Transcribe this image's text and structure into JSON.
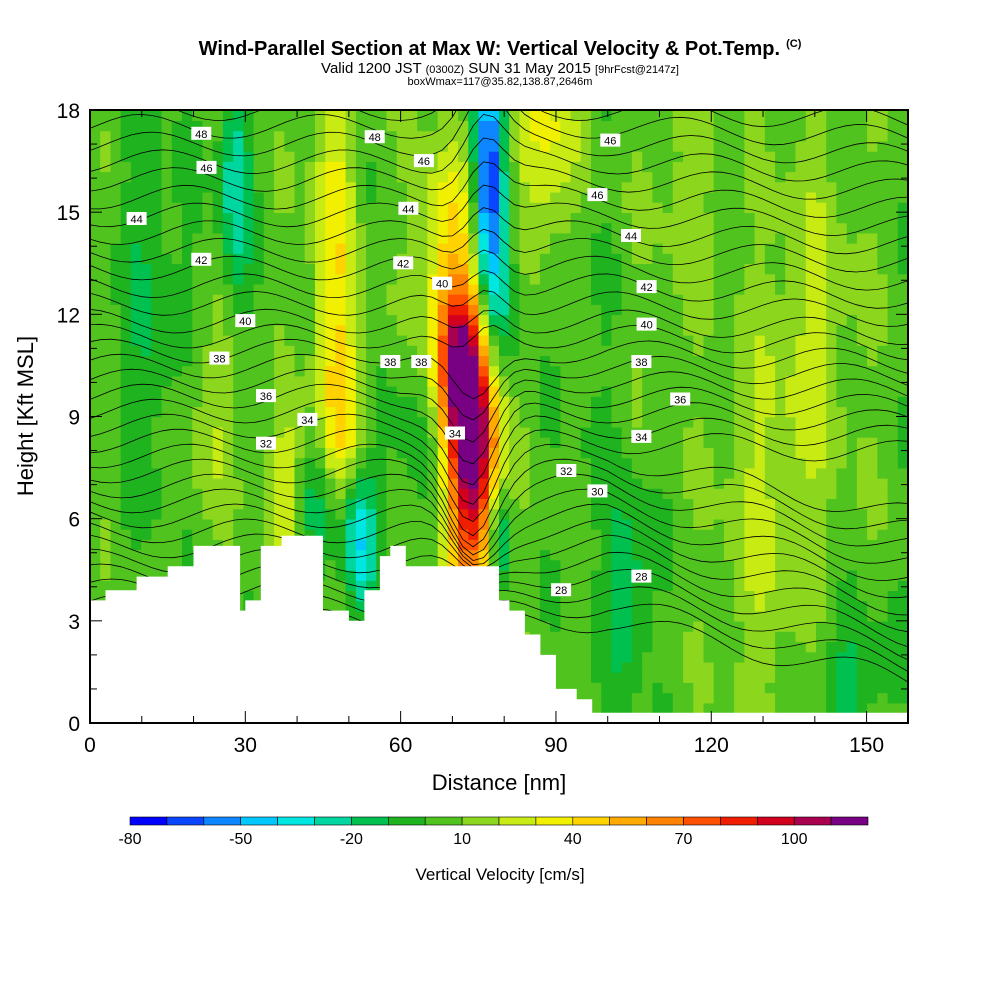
{
  "title": {
    "main": "Wind-Parallel Section at Max W: Vertical Velocity & Pot.Temp.",
    "copyright": "(C)",
    "valid": "Valid 1200 JST",
    "zulu": "(0300Z)",
    "date": "SUN 31 May 2015",
    "fcst": "[9hrFcst@2147z]",
    "box": "boxWmax=117@35.82,138.87,2646m"
  },
  "chart_data": {
    "type": "heatmap",
    "title": "Wind-Parallel Section at Max W: Vertical Velocity & Pot.Temp.",
    "xlabel": "Distance [nm]",
    "ylabel": "Height [Kft MSL]",
    "xlim": [
      0,
      158
    ],
    "ylim": [
      0,
      18
    ],
    "x_ticks": [
      0,
      30,
      60,
      90,
      120,
      150
    ],
    "y_ticks": [
      0,
      3,
      6,
      9,
      12,
      15,
      18
    ],
    "grid": false,
    "colorbar": {
      "label": "Vertical Velocity [cm/s]",
      "tick_values": [
        -80,
        -50,
        -20,
        10,
        40,
        70,
        100
      ],
      "levels": [
        -80,
        -70,
        -60,
        -50,
        -40,
        -30,
        -20,
        -10,
        0,
        10,
        20,
        30,
        40,
        50,
        60,
        70,
        80,
        90,
        100,
        110,
        120
      ],
      "colors": [
        "#0000ff",
        "#0a46ff",
        "#0d86ff",
        "#00c8ff",
        "#00e6e1",
        "#00d7a0",
        "#00c050",
        "#1fb41f",
        "#50c31e",
        "#8cd71e",
        "#c8eb14",
        "#f0f000",
        "#ffd200",
        "#ffaa00",
        "#ff8200",
        "#ff5000",
        "#f01e00",
        "#d2001e",
        "#aa0050",
        "#780082"
      ]
    },
    "terrain_profile": {
      "x": [
        0,
        3,
        3,
        9,
        9,
        15,
        15,
        20,
        20,
        24,
        24,
        29,
        29,
        30,
        30,
        33,
        33,
        37,
        37,
        40,
        40,
        45,
        45,
        50,
        50,
        53,
        53,
        56,
        56,
        58,
        58,
        61,
        61,
        68,
        68,
        79,
        79,
        81,
        81,
        84,
        84,
        87,
        87,
        90,
        90,
        94,
        94,
        97,
        97,
        100,
        100,
        158
      ],
      "y": [
        3.6,
        3.6,
        3.9,
        3.9,
        4.3,
        4.3,
        4.6,
        4.6,
        5.2,
        5.2,
        5.2,
        5.2,
        3.3,
        3.3,
        3.6,
        3.6,
        5.2,
        5.2,
        5.5,
        5.5,
        5.5,
        5.5,
        3.3,
        3.3,
        3.0,
        3.0,
        3.9,
        3.9,
        4.9,
        4.9,
        5.2,
        5.2,
        4.6,
        4.6,
        4.6,
        4.6,
        3.6,
        3.6,
        3.3,
        3.3,
        2.6,
        2.6,
        2.0,
        2.0,
        1.0,
        1.0,
        0.7,
        0.7,
        0.3,
        0.3,
        0.3,
        0.3
      ]
    },
    "velocity_features": [
      {
        "x": 74,
        "y": 8.0,
        "value": 117,
        "sx": 3.5,
        "sy": 2.8
      },
      {
        "x": 71,
        "y": 10.5,
        "value": 55,
        "sx": 3,
        "sy": 1.5
      },
      {
        "x": 69,
        "y": 13.5,
        "value": 35,
        "sx": 4,
        "sy": 2.5
      },
      {
        "x": 47,
        "y": 14.0,
        "value": 30,
        "sx": 3,
        "sy": 4.5
      },
      {
        "x": 49,
        "y": 9.0,
        "value": 25,
        "sx": 3,
        "sy": 2.0
      },
      {
        "x": 38,
        "y": 7.0,
        "value": 25,
        "sx": 2.5,
        "sy": 1.5
      },
      {
        "x": 88,
        "y": 17.0,
        "value": 30,
        "sx": 4,
        "sy": 2.0
      },
      {
        "x": 77,
        "y": 16.0,
        "value": -70,
        "sx": 2.0,
        "sy": 2.5
      },
      {
        "x": 79,
        "y": 12.5,
        "value": -30,
        "sx": 2.5,
        "sy": 2.0
      },
      {
        "x": 79,
        "y": 5.5,
        "value": -40,
        "sx": 1.8,
        "sy": 1.2
      },
      {
        "x": 52,
        "y": 5.5,
        "value": -45,
        "sx": 2.5,
        "sy": 1.5
      },
      {
        "x": 44,
        "y": 6.5,
        "value": -20,
        "sx": 3,
        "sy": 1.5
      },
      {
        "x": 28,
        "y": 16.0,
        "value": -35,
        "sx": 2,
        "sy": 2.5
      },
      {
        "x": 12,
        "y": 12.0,
        "value": -15,
        "sx": 5,
        "sy": 4
      },
      {
        "x": 62,
        "y": 8.5,
        "value": -10,
        "sx": 4,
        "sy": 2
      },
      {
        "x": 104,
        "y": 4.0,
        "value": -25,
        "sx": 3,
        "sy": 2
      },
      {
        "x": 148,
        "y": 1.5,
        "value": -20,
        "sx": 5,
        "sy": 1.2
      },
      {
        "x": 130,
        "y": 6.0,
        "value": 15,
        "sx": 6,
        "sy": 4
      },
      {
        "x": 115,
        "y": 16.0,
        "value": 10,
        "sx": 5,
        "sy": 3
      },
      {
        "x": 96,
        "y": 9.0,
        "value": -5,
        "sx": 4,
        "sy": 5
      },
      {
        "x": 140,
        "y": 12.0,
        "value": 15,
        "sx": 6,
        "sy": 4
      },
      {
        "x": 23,
        "y": 9.0,
        "value": 15,
        "sx": 4,
        "sy": 2
      }
    ],
    "theta_labels": [
      {
        "text": "48",
        "x": 21.5,
        "y": 17.3
      },
      {
        "text": "48",
        "x": 55,
        "y": 17.2
      },
      {
        "text": "46",
        "x": 22.5,
        "y": 16.3
      },
      {
        "text": "46",
        "x": 64.5,
        "y": 16.5
      },
      {
        "text": "46",
        "x": 100.5,
        "y": 17.1
      },
      {
        "text": "46",
        "x": 98,
        "y": 15.5
      },
      {
        "text": "44",
        "x": 9,
        "y": 14.8
      },
      {
        "text": "44",
        "x": 61.5,
        "y": 15.1
      },
      {
        "text": "44",
        "x": 104.5,
        "y": 14.3
      },
      {
        "text": "42",
        "x": 21.5,
        "y": 13.6
      },
      {
        "text": "42",
        "x": 60.5,
        "y": 13.5
      },
      {
        "text": "42",
        "x": 107.5,
        "y": 12.8
      },
      {
        "text": "40",
        "x": 30,
        "y": 11.8
      },
      {
        "text": "40",
        "x": 68,
        "y": 12.9
      },
      {
        "text": "40",
        "x": 107.5,
        "y": 11.7
      },
      {
        "text": "38",
        "x": 25,
        "y": 10.7
      },
      {
        "text": "38",
        "x": 58,
        "y": 10.6
      },
      {
        "text": "38",
        "x": 64,
        "y": 10.6
      },
      {
        "text": "38",
        "x": 106.5,
        "y": 10.6
      },
      {
        "text": "36",
        "x": 34,
        "y": 9.6
      },
      {
        "text": "36",
        "x": 114,
        "y": 9.5
      },
      {
        "text": "34",
        "x": 42,
        "y": 8.9
      },
      {
        "text": "34",
        "x": 70.5,
        "y": 8.5
      },
      {
        "text": "34",
        "x": 106.5,
        "y": 8.4
      },
      {
        "text": "32",
        "x": 34,
        "y": 8.2
      },
      {
        "text": "32",
        "x": 92,
        "y": 7.4
      },
      {
        "text": "30",
        "x": 98,
        "y": 6.8
      },
      {
        "text": "28",
        "x": 91,
        "y": 3.9
      },
      {
        "text": "28",
        "x": 106.5,
        "y": 4.3
      }
    ]
  }
}
